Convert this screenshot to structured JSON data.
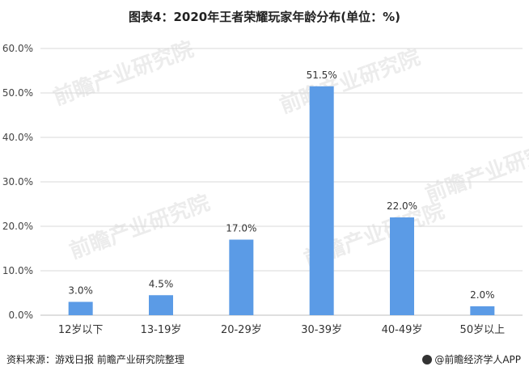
{
  "title": "图表4：2020年王者荣耀玩家年龄分布(单位：%)",
  "source": "资料来源：游戏日报 前瞻产业研究院整理",
  "brand": "@前瞻经济学人APP",
  "watermark": "前瞻产业研究院",
  "colors": {
    "bar": "#5b9be6",
    "grid": "#d9d9d9",
    "axis": "#bfbfbf"
  },
  "chart_data": {
    "type": "bar",
    "title": "图表4：2020年王者荣耀玩家年龄分布(单位：%)",
    "categories": [
      "12岁以下",
      "13-19岁",
      "20-29岁",
      "30-39岁",
      "40-49岁",
      "50岁以上"
    ],
    "values": [
      3.0,
      4.5,
      17.0,
      51.5,
      22.0,
      2.0
    ],
    "value_labels": [
      "3.0%",
      "4.5%",
      "17.0%",
      "51.5%",
      "22.0%",
      "2.0%"
    ],
    "yticks": [
      "0.0%",
      "10.0%",
      "20.0%",
      "30.0%",
      "40.0%",
      "50.0%",
      "60.0%"
    ],
    "ylim": [
      0,
      60
    ],
    "xlabel": "",
    "ylabel": "",
    "grid": true,
    "legend": "none"
  }
}
